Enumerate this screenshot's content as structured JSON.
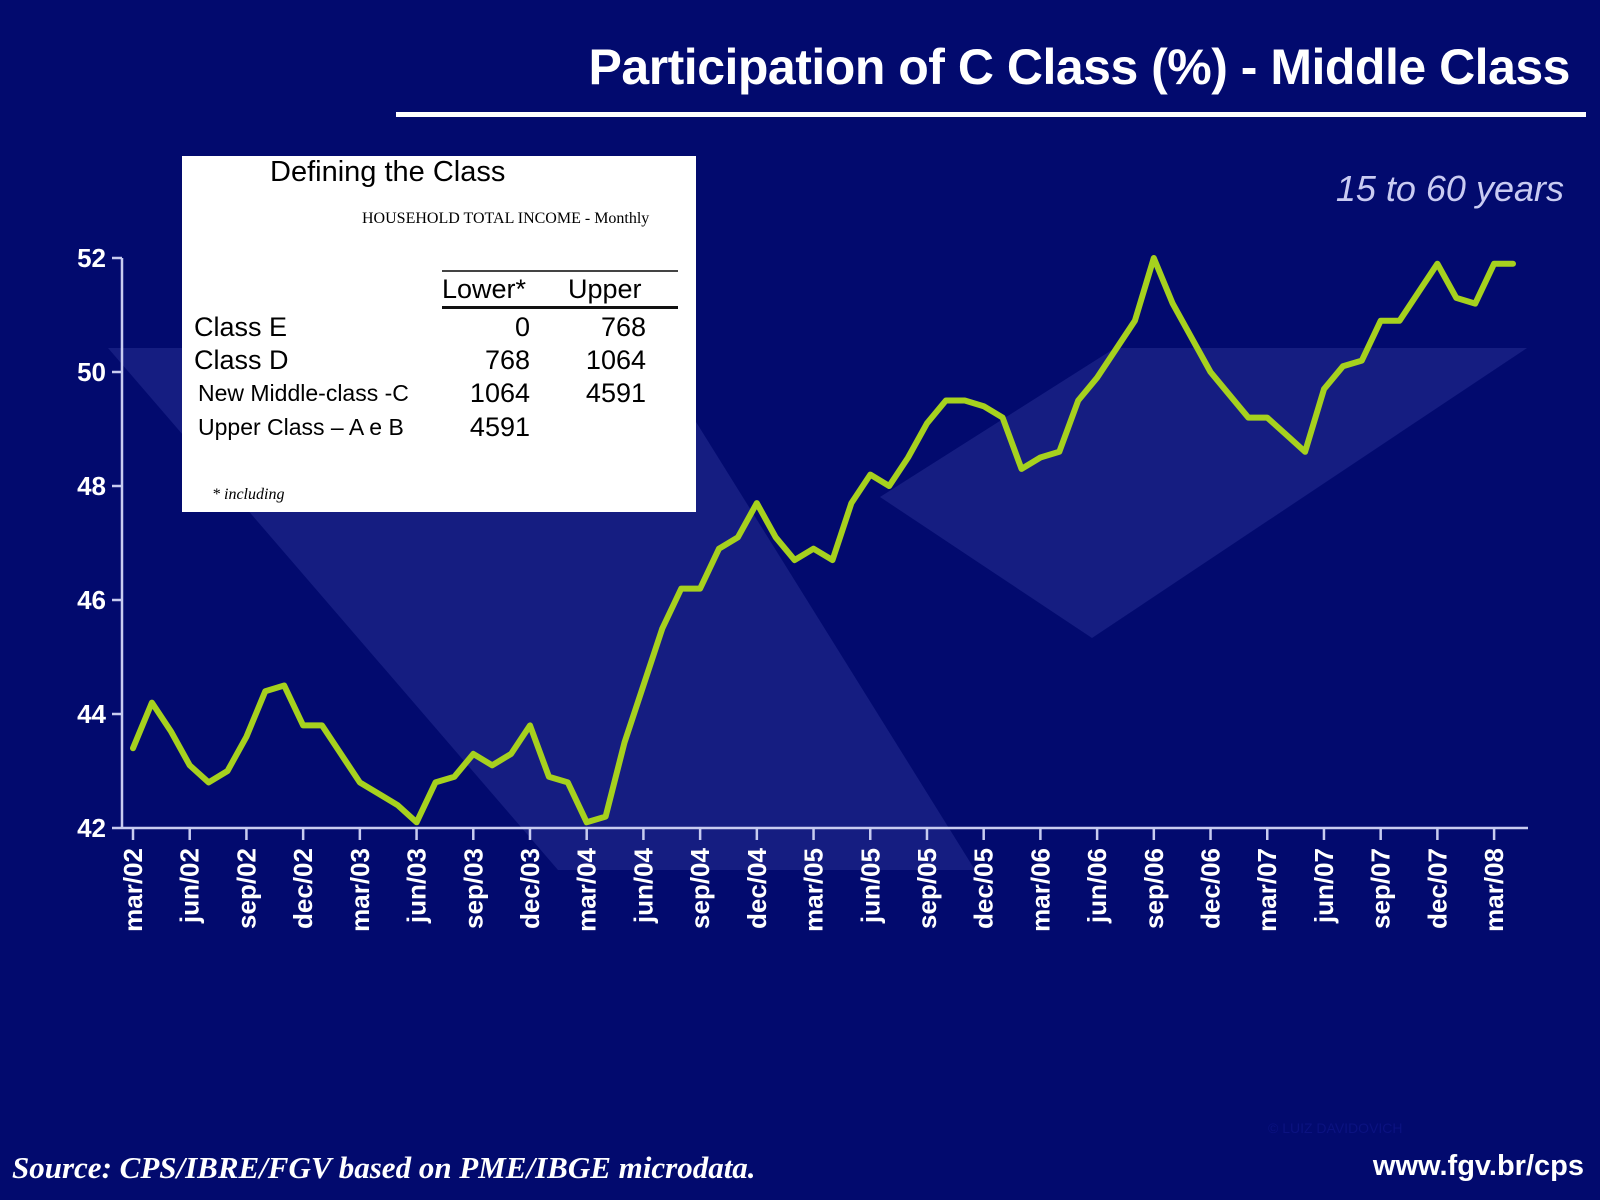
{
  "title": "Participation of C Class (%) - Middle Class",
  "subtitle": "15 to 60 years",
  "source": "Source: CPS/IBRE/FGV based on PME/IBGE microdata.",
  "url": "www.fgv.br/cps",
  "copyright": "© LUIZ DAVIDOVICH",
  "colors": {
    "background": "#020a6e",
    "line": "#a6d11e",
    "axis": "#c8ccf0",
    "shape": "#5a66c8"
  },
  "inset": {
    "title": "Defining the Class",
    "subtitle": "HOUSEHOLD TOTAL INCOME - Monthly",
    "col_lower": "Lower*",
    "col_upper": "Upper",
    "rows": [
      {
        "label": "Class E",
        "lower": "0",
        "upper": "768"
      },
      {
        "label": "Class D",
        "lower": "768",
        "upper": "1064"
      },
      {
        "label": "New Middle-class -C",
        "lower": "1064",
        "upper": "4591"
      },
      {
        "label": "Upper Class – A e B",
        "lower": "4591",
        "upper": ""
      }
    ],
    "footnote": "* including"
  },
  "chart_data": {
    "type": "line",
    "title": "Participation of C Class (%) - Middle Class",
    "subtitle": "15 to 60 years",
    "ylim": [
      42,
      52
    ],
    "yticks": [
      42,
      44,
      46,
      48,
      50,
      52
    ],
    "xtick_labels": [
      "mar/02",
      "jun/02",
      "sep/02",
      "dec/02",
      "mar/03",
      "jun/03",
      "sep/03",
      "dec/03",
      "mar/04",
      "jun/04",
      "sep/04",
      "dec/04",
      "mar/05",
      "jun/05",
      "sep/05",
      "dec/05",
      "mar/06",
      "jun/06",
      "sep/06",
      "dec/06",
      "mar/07",
      "jun/07",
      "sep/07",
      "dec/07",
      "mar/08"
    ],
    "grid": false,
    "series": [
      {
        "values": [
          43.4,
          44.2,
          43.7,
          43.1,
          42.8,
          43.0,
          43.6,
          44.4,
          44.5,
          43.8,
          43.8,
          43.3,
          42.8,
          42.6,
          42.4,
          42.1,
          42.8,
          42.9,
          43.3,
          43.1,
          43.3,
          43.8,
          42.9,
          42.8,
          42.1,
          42.2,
          43.5,
          44.5,
          45.5,
          46.2,
          46.2,
          46.9,
          47.1,
          47.7,
          47.1,
          46.7,
          46.9,
          46.7,
          47.7,
          48.2,
          48.0,
          48.5,
          49.1,
          49.5,
          49.5,
          49.4,
          49.2,
          48.3,
          48.5,
          48.6,
          49.5,
          49.9,
          50.4,
          50.9,
          52.0,
          51.2,
          50.6,
          50.0,
          49.6,
          49.2,
          49.2,
          48.9,
          48.6,
          49.7,
          50.1,
          50.2,
          50.9,
          50.9,
          51.4,
          51.9,
          51.3,
          51.2,
          51.9,
          51.9
        ]
      }
    ]
  }
}
